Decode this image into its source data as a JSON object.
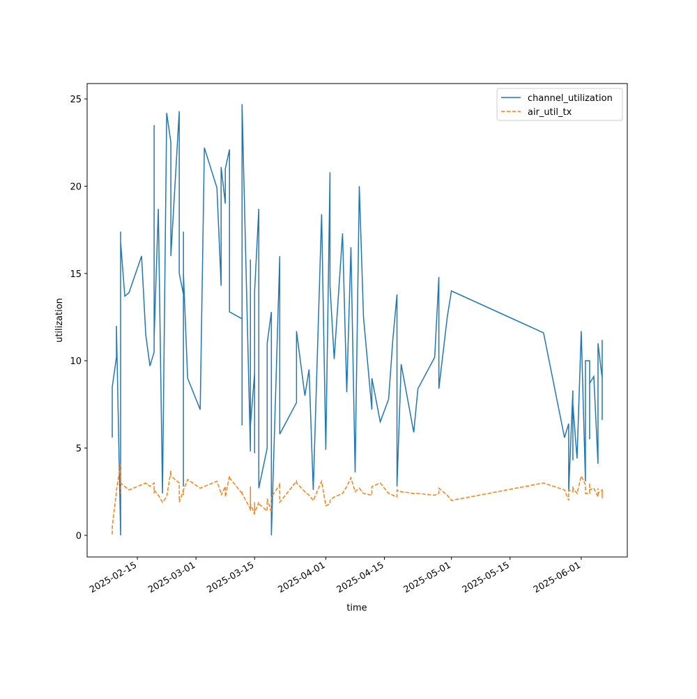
{
  "chart_data": {
    "type": "line",
    "xlabel": "time",
    "ylabel": "utilization",
    "x": [
      "2025-02-09",
      "2025-02-09",
      "2025-02-09",
      "2025-02-10",
      "2025-02-10",
      "2025-02-10",
      "2025-02-11",
      "2025-02-11",
      "2025-02-11",
      "2025-02-11",
      "2025-02-12",
      "2025-02-13",
      "2025-02-16",
      "2025-02-17",
      "2025-02-18",
      "2025-02-19",
      "2025-02-19",
      "2025-02-19",
      "2025-02-20",
      "2025-02-21",
      "2025-02-22",
      "2025-02-23",
      "2025-02-23",
      "2025-02-25",
      "2025-02-25",
      "2025-02-26",
      "2025-02-26",
      "2025-02-26",
      "2025-02-26",
      "2025-02-27",
      "2025-03-02",
      "2025-03-03",
      "2025-03-06",
      "2025-03-07",
      "2025-03-07",
      "2025-03-08",
      "2025-03-08",
      "2025-03-09",
      "2025-03-09",
      "2025-03-12",
      "2025-03-12",
      "2025-03-12",
      "2025-03-14",
      "2025-03-14",
      "2025-03-14",
      "2025-03-14",
      "2025-03-15",
      "2025-03-15",
      "2025-03-15",
      "2025-03-16",
      "2025-03-16",
      "2025-03-18",
      "2025-03-18",
      "2025-03-19",
      "2025-03-19",
      "2025-03-21",
      "2025-03-21",
      "2025-03-21",
      "2025-03-25",
      "2025-03-25",
      "2025-03-27",
      "2025-03-28",
      "2025-03-29",
      "2025-03-31",
      "2025-04-01",
      "2025-04-02",
      "2025-04-02",
      "2025-04-03",
      "2025-04-05",
      "2025-04-06",
      "2025-04-07",
      "2025-04-08",
      "2025-04-09",
      "2025-04-10",
      "2025-04-12",
      "2025-04-12",
      "2025-04-14",
      "2025-04-16",
      "2025-04-17",
      "2025-04-18",
      "2025-04-18",
      "2025-04-19",
      "2025-04-22",
      "2025-04-23",
      "2025-04-27",
      "2025-04-28",
      "2025-04-28",
      "2025-04-30",
      "2025-05-01",
      "2025-05-23",
      "2025-05-28",
      "2025-05-29",
      "2025-05-29",
      "2025-05-30",
      "2025-05-30",
      "2025-05-30",
      "2025-05-31",
      "2025-06-01",
      "2025-06-02",
      "2025-06-02",
      "2025-06-03",
      "2025-06-03",
      "2025-06-03",
      "2025-06-04",
      "2025-06-05",
      "2025-06-05",
      "2025-06-05",
      "2025-06-06",
      "2025-06-06",
      "2025-06-06",
      "2025-06-06"
    ],
    "series": [
      {
        "name": "channel_utilization",
        "color": "#1f77b4",
        "dash": "solid",
        "values": [
          5.6,
          7.5,
          8.5,
          10.2,
          10.2,
          12,
          0,
          17.4,
          2.5,
          16.8,
          13.7,
          13.9,
          16,
          11.5,
          9.7,
          10.5,
          23.5,
          11.3,
          18.7,
          2.4,
          24.2,
          22.5,
          16,
          24.3,
          15,
          13.8,
          2.8,
          17.4,
          15,
          9,
          7.2,
          22.2,
          19.9,
          14.3,
          21.1,
          19,
          21,
          22.1,
          12.8,
          12.4,
          6.3,
          24.7,
          4.8,
          15,
          15.8,
          6.3,
          9.3,
          4.7,
          14,
          18.7,
          2.7,
          5,
          11,
          12.8,
          0,
          16,
          16,
          5.8,
          7.6,
          11.7,
          8,
          9.5,
          2.6,
          18.4,
          4.9,
          20.8,
          14.3,
          10.1,
          17.3,
          8.2,
          16.5,
          3.6,
          20,
          12.5,
          7.2,
          9,
          6.5,
          7.8,
          11.2,
          13.8,
          2.8,
          9.8,
          5.9,
          8.4,
          10.2,
          14.8,
          8.4,
          12.5,
          14,
          11.6,
          5.6,
          6.4,
          2.5,
          8.3,
          4.3,
          7.5,
          4.4,
          11.7,
          3.1,
          10,
          10,
          5.5,
          8.7,
          9.1,
          4.1,
          5.4,
          11,
          9,
          11.2,
          9,
          6.6
        ]
      },
      {
        "name": "air_util_tx",
        "color": "#ff7f0e",
        "dash": "dashed",
        "values": [
          0.05,
          0.1,
          0.5,
          2.5,
          2.5,
          2.6,
          4.1,
          2.4,
          3.3,
          3.0,
          2.8,
          2.6,
          2.9,
          3.0,
          2.8,
          3.0,
          2.4,
          2.6,
          2.3,
          1.9,
          2.2,
          3.7,
          3.4,
          3.0,
          1.9,
          2.6,
          2.3,
          2.5,
          2.6,
          3.2,
          2.7,
          2.8,
          3.1,
          2.4,
          2.3,
          2.8,
          2.2,
          3.4,
          3.3,
          2.4,
          2.5,
          2.4,
          1.5,
          2.8,
          1.4,
          1.8,
          1.2,
          1.9,
          1.3,
          1.9,
          1.8,
          1.4,
          2.1,
          1.3,
          2.2,
          2.9,
          3.0,
          1.9,
          3.1,
          3.0,
          2.5,
          2.3,
          2.0,
          3.1,
          1.7,
          1.8,
          2.0,
          2.2,
          2.4,
          2.8,
          3.3,
          2.5,
          2.7,
          2.4,
          2.3,
          2.8,
          3.0,
          2.4,
          2.3,
          2.2,
          2.6,
          2.5,
          2.4,
          2.4,
          2.3,
          2.4,
          2.7,
          2.3,
          2.0,
          3.0,
          2.6,
          2.0,
          2.6,
          2.5,
          2.8,
          2.7,
          2.4,
          3.4,
          2.9,
          2.4,
          2.4,
          3.0,
          2.6,
          2.7,
          2.2,
          2.7,
          2.4,
          2.6,
          2.2,
          2.5,
          2.1
        ]
      }
    ],
    "xlim": [
      "2025-02-03",
      "2025-06-12"
    ],
    "xticks": [
      "2025-02-15",
      "2025-03-01",
      "2025-03-15",
      "2025-04-01",
      "2025-04-15",
      "2025-05-01",
      "2025-05-15",
      "2025-06-01"
    ],
    "ylim": [
      -1.24,
      25.88
    ],
    "yticks": [
      0,
      5,
      10,
      15,
      20,
      25
    ],
    "legend": "upper right"
  }
}
